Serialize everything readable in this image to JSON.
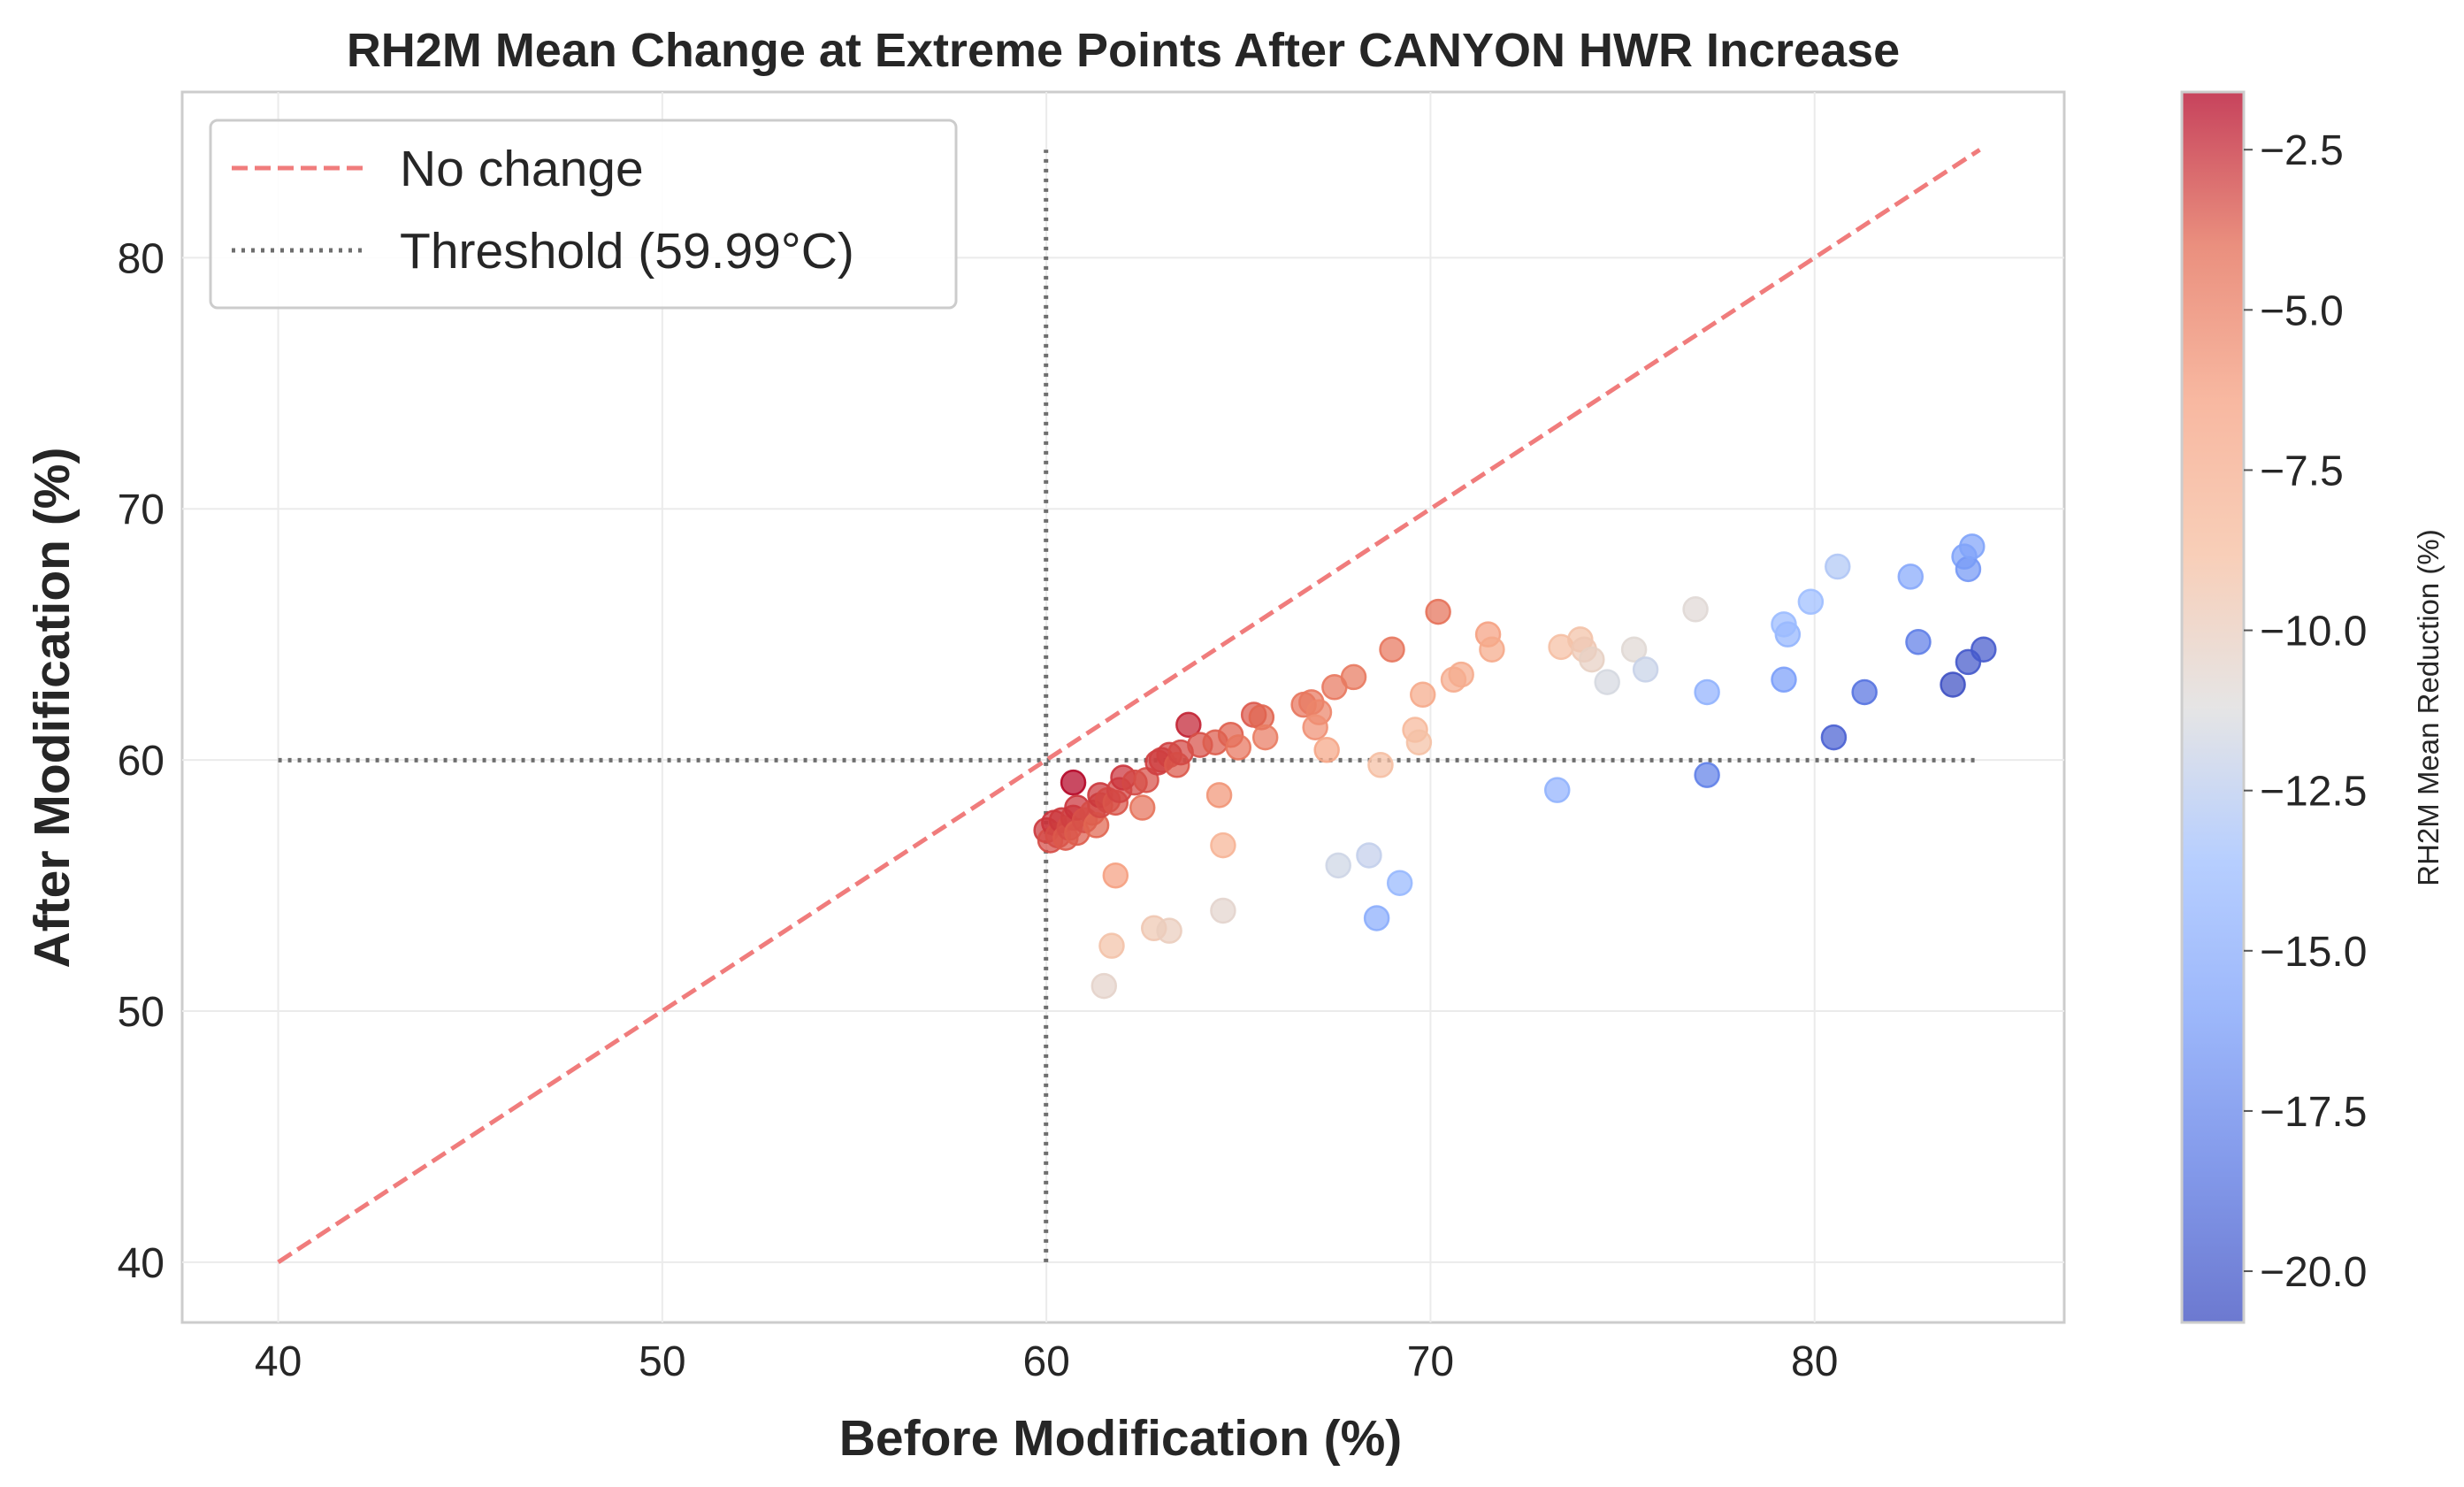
{
  "chart_data": {
    "type": "scatter",
    "title": "RH2M Mean Change at Extreme Points After CANYON HWR Increase",
    "xlabel": "Before Modification (%)",
    "ylabel": "After Modification (%)",
    "xlim": [
      37.5,
      86.5
    ],
    "ylim": [
      37.6,
      86.6
    ],
    "xticks": [
      40,
      50,
      60,
      70,
      80
    ],
    "yticks": [
      40,
      50,
      60,
      70,
      80
    ],
    "grid": true,
    "legend": {
      "placement": "top-left",
      "entries": [
        {
          "label": "No change",
          "style": "dashed",
          "color": "#f07c7c"
        },
        {
          "label": "Threshold (59.99°C)",
          "style": "dotted",
          "color": "#6e6e6e"
        }
      ]
    },
    "no_change_line": {
      "x": [
        40,
        84.3
      ],
      "y": [
        40,
        84.3
      ]
    },
    "threshold": {
      "value": 59.99,
      "v_range": [
        40,
        84.3
      ],
      "h_range": [
        40,
        84.3
      ]
    },
    "colorbar": {
      "label": "RH2M Mean Reduction (%)",
      "colormap": "coolwarm",
      "min": -20.8,
      "max": -1.6,
      "ticks": [
        -2.5,
        -5.0,
        -7.5,
        -10.0,
        -12.5,
        -15.0,
        -17.5,
        -20.0
      ],
      "tick_labels": [
        "−2.5",
        "−5.0",
        "−7.5",
        "−10.0",
        "−12.5",
        "−15.0",
        "−17.5",
        "−20.0"
      ]
    },
    "points": [
      {
        "x": 60.0,
        "y": 57.2
      },
      {
        "x": 60.1,
        "y": 56.8
      },
      {
        "x": 60.2,
        "y": 57.5
      },
      {
        "x": 60.3,
        "y": 57.0
      },
      {
        "x": 60.4,
        "y": 57.6
      },
      {
        "x": 60.5,
        "y": 56.9
      },
      {
        "x": 60.6,
        "y": 57.3
      },
      {
        "x": 60.7,
        "y": 57.7
      },
      {
        "x": 60.8,
        "y": 57.1
      },
      {
        "x": 60.7,
        "y": 59.1
      },
      {
        "x": 60.8,
        "y": 58.1
      },
      {
        "x": 61.0,
        "y": 57.6
      },
      {
        "x": 61.2,
        "y": 57.9
      },
      {
        "x": 61.3,
        "y": 57.4
      },
      {
        "x": 61.4,
        "y": 58.2
      },
      {
        "x": 61.4,
        "y": 58.6
      },
      {
        "x": 61.6,
        "y": 58.4
      },
      {
        "x": 61.8,
        "y": 58.3
      },
      {
        "x": 61.9,
        "y": 58.8
      },
      {
        "x": 62.0,
        "y": 59.3
      },
      {
        "x": 62.3,
        "y": 59.1
      },
      {
        "x": 62.5,
        "y": 58.1
      },
      {
        "x": 62.6,
        "y": 59.2
      },
      {
        "x": 62.9,
        "y": 59.9
      },
      {
        "x": 63.0,
        "y": 60.0
      },
      {
        "x": 63.2,
        "y": 60.2
      },
      {
        "x": 63.4,
        "y": 59.8
      },
      {
        "x": 63.5,
        "y": 60.3
      },
      {
        "x": 63.7,
        "y": 61.4
      },
      {
        "x": 64.0,
        "y": 60.6
      },
      {
        "x": 64.4,
        "y": 60.7
      },
      {
        "x": 64.8,
        "y": 61.0
      },
      {
        "x": 65.0,
        "y": 60.5
      },
      {
        "x": 65.4,
        "y": 61.8
      },
      {
        "x": 65.6,
        "y": 61.7
      },
      {
        "x": 65.7,
        "y": 60.9
      },
      {
        "x": 66.7,
        "y": 62.2
      },
      {
        "x": 66.9,
        "y": 62.3
      },
      {
        "x": 67.1,
        "y": 61.9
      },
      {
        "x": 67.0,
        "y": 61.3
      },
      {
        "x": 67.5,
        "y": 62.9
      },
      {
        "x": 68.0,
        "y": 63.3
      },
      {
        "x": 69.0,
        "y": 64.4
      },
      {
        "x": 70.2,
        "y": 65.9
      },
      {
        "x": 71.5,
        "y": 65.0
      },
      {
        "x": 71.6,
        "y": 64.4
      },
      {
        "x": 64.5,
        "y": 58.6
      },
      {
        "x": 61.8,
        "y": 55.4
      },
      {
        "x": 64.6,
        "y": 56.6
      },
      {
        "x": 67.3,
        "y": 60.4
      },
      {
        "x": 69.8,
        "y": 62.6
      },
      {
        "x": 70.6,
        "y": 63.2
      },
      {
        "x": 70.8,
        "y": 63.4
      },
      {
        "x": 69.6,
        "y": 61.2
      },
      {
        "x": 69.7,
        "y": 60.7
      },
      {
        "x": 68.7,
        "y": 59.8
      },
      {
        "x": 73.4,
        "y": 64.5
      },
      {
        "x": 73.9,
        "y": 64.8
      },
      {
        "x": 74.0,
        "y": 64.4
      },
      {
        "x": 74.2,
        "y": 64.0
      },
      {
        "x": 61.7,
        "y": 52.6
      },
      {
        "x": 62.8,
        "y": 53.3
      },
      {
        "x": 63.2,
        "y": 53.2
      },
      {
        "x": 64.6,
        "y": 54.0
      },
      {
        "x": 61.5,
        "y": 51.0
      },
      {
        "x": 74.6,
        "y": 63.1
      },
      {
        "x": 75.3,
        "y": 64.4
      },
      {
        "x": 75.6,
        "y": 63.6
      },
      {
        "x": 76.9,
        "y": 66.0
      },
      {
        "x": 67.6,
        "y": 55.8
      },
      {
        "x": 68.4,
        "y": 56.2
      },
      {
        "x": 69.2,
        "y": 55.1
      },
      {
        "x": 68.6,
        "y": 53.7
      },
      {
        "x": 73.3,
        "y": 58.8
      },
      {
        "x": 77.2,
        "y": 62.7
      },
      {
        "x": 79.3,
        "y": 65.0
      },
      {
        "x": 79.2,
        "y": 65.4
      },
      {
        "x": 79.2,
        "y": 63.2
      },
      {
        "x": 79.9,
        "y": 66.3
      },
      {
        "x": 80.6,
        "y": 67.7
      },
      {
        "x": 82.5,
        "y": 67.3
      },
      {
        "x": 83.9,
        "y": 68.1
      },
      {
        "x": 84.0,
        "y": 67.6
      },
      {
        "x": 84.1,
        "y": 68.5
      },
      {
        "x": 77.2,
        "y": 59.4
      },
      {
        "x": 80.5,
        "y": 60.9
      },
      {
        "x": 81.3,
        "y": 62.7
      },
      {
        "x": 82.7,
        "y": 64.7
      },
      {
        "x": 83.6,
        "y": 63.0
      },
      {
        "x": 84.0,
        "y": 63.9
      },
      {
        "x": 84.4,
        "y": 64.4
      }
    ]
  }
}
